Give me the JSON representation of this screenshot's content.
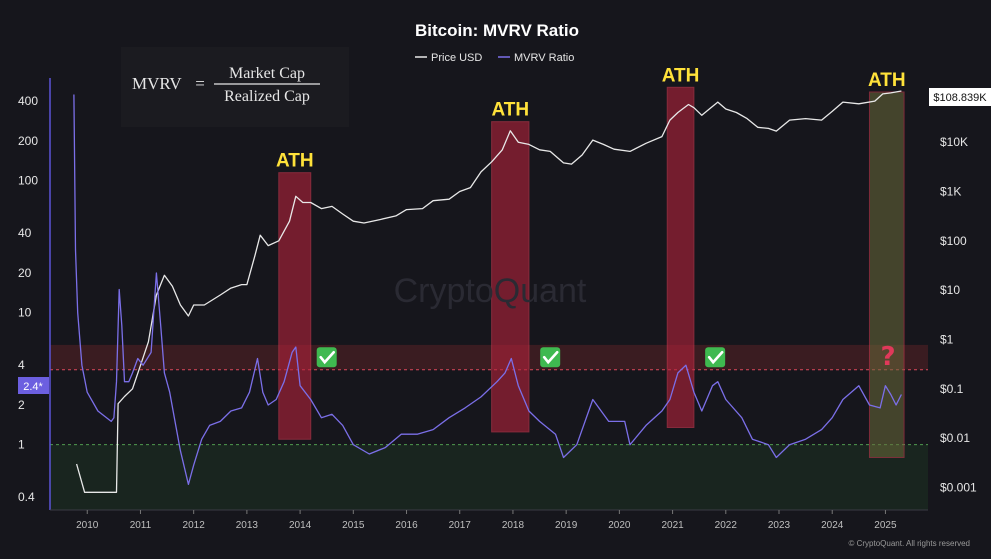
{
  "chart_data": {
    "type": "line",
    "title": "Bitcoin: MVRV Ratio",
    "legend": {
      "placement": "top-center",
      "items": [
        "Price USD",
        "MVRV Ratio"
      ]
    },
    "formula": {
      "lhs": "MVRV",
      "eq": "=",
      "numerator": "Market Cap",
      "denominator": "Realized Cap"
    },
    "watermark": "CryptoQuant",
    "copyright": "© CryptoQuant. All rights reserved",
    "colors": {
      "price": "#e8e8e8",
      "mvrv": "#7b6fe8",
      "ath_band": "#b3223a",
      "ath_label": "#ffe23a",
      "overvalued_zone": "#5a2226",
      "undervalued_zone": "#1d3322",
      "background": "#16161c"
    },
    "x_axis": {
      "range": [
        2009.3,
        2025.8
      ],
      "ticks": [
        2010,
        2011,
        2012,
        2013,
        2014,
        2015,
        2016,
        2017,
        2018,
        2019,
        2020,
        2021,
        2022,
        2023,
        2024,
        2025
      ]
    },
    "y_left": {
      "scale": "log",
      "range": [
        0.32,
        600
      ],
      "ticks": [
        0.4,
        1,
        2,
        4,
        10,
        20,
        40,
        100,
        200,
        400
      ],
      "tick_labels": [
        "0.4",
        "1",
        "2",
        "4",
        "10",
        "20",
        "40",
        "100",
        "200",
        "400"
      ],
      "current_value_label": "2.4*"
    },
    "y_right": {
      "scale": "log",
      "range": [
        0.00035,
        200000
      ],
      "ticks": [
        0.001,
        0.01,
        0.1,
        1,
        10,
        100,
        1000,
        10000
      ],
      "tick_labels": [
        "$0.001",
        "$0.01",
        "$0.1",
        "$1",
        "$10",
        "$100",
        "$1K",
        "$10K"
      ],
      "current_value_label": "$108.839K",
      "current_value": 108839
    },
    "zones": [
      {
        "name": "overvalued",
        "mvrv_from": 3.7,
        "mvrv_to": 5.7,
        "line_at": 3.7
      },
      {
        "name": "undervalued",
        "mvrv_from": 0.32,
        "mvrv_to": 1.0,
        "line_at": 1.0
      }
    ],
    "ath_markers": [
      {
        "label": "ATH",
        "x_from": 2013.6,
        "x_to": 2014.2,
        "mvrv_from": 1.1,
        "mvrv_to": 115,
        "check": true,
        "check_x": 2014.5
      },
      {
        "label": "ATH",
        "x_from": 2017.6,
        "x_to": 2018.3,
        "mvrv_from": 1.25,
        "mvrv_to": 280,
        "check": true,
        "check_x": 2018.7
      },
      {
        "label": "ATH",
        "x_from": 2020.9,
        "x_to": 2021.4,
        "mvrv_from": 1.35,
        "mvrv_to": 510,
        "check": true,
        "check_x": 2021.8
      },
      {
        "label": "ATH",
        "x_from": 2024.7,
        "x_to": 2025.35,
        "mvrv_from": 0.8,
        "mvrv_to": 470,
        "check": false,
        "question_x": 2025.05
      }
    ],
    "series": [
      {
        "name": "Price USD",
        "axis": "right",
        "x": [
          2009.8,
          2009.95,
          2010.3,
          2010.55,
          2010.58,
          2010.7,
          2010.85,
          2011.0,
          2011.15,
          2011.3,
          2011.45,
          2011.6,
          2011.75,
          2011.9,
          2012.0,
          2012.2,
          2012.5,
          2012.7,
          2012.9,
          2013.0,
          2013.15,
          2013.25,
          2013.4,
          2013.6,
          2013.8,
          2013.92,
          2014.05,
          2014.2,
          2014.4,
          2014.6,
          2014.8,
          2015.0,
          2015.2,
          2015.5,
          2015.8,
          2016.0,
          2016.3,
          2016.5,
          2016.8,
          2017.0,
          2017.2,
          2017.4,
          2017.6,
          2017.8,
          2017.95,
          2018.1,
          2018.3,
          2018.5,
          2018.7,
          2018.95,
          2019.1,
          2019.3,
          2019.5,
          2019.7,
          2019.9,
          2020.2,
          2020.5,
          2020.8,
          2020.95,
          2021.1,
          2021.3,
          2021.4,
          2021.55,
          2021.7,
          2021.85,
          2022.0,
          2022.2,
          2022.4,
          2022.6,
          2022.8,
          2022.95,
          2023.2,
          2023.5,
          2023.8,
          2024.0,
          2024.2,
          2024.5,
          2024.8,
          2024.95,
          2025.1,
          2025.3
        ],
        "y": [
          0.003,
          0.0008,
          0.0008,
          0.0008,
          0.05,
          0.07,
          0.1,
          0.3,
          0.9,
          8,
          20,
          12,
          5,
          3,
          5,
          5,
          8,
          11,
          13,
          13,
          50,
          130,
          80,
          100,
          250,
          800,
          600,
          600,
          450,
          500,
          350,
          250,
          230,
          270,
          320,
          430,
          450,
          650,
          700,
          1000,
          1200,
          2500,
          4000,
          7000,
          17000,
          10000,
          9000,
          7000,
          6500,
          3800,
          3600,
          5500,
          11000,
          9000,
          7200,
          6500,
          9500,
          13000,
          28000,
          40000,
          58000,
          50000,
          35000,
          48000,
          65000,
          47000,
          40000,
          30000,
          20000,
          19000,
          16800,
          28000,
          30000,
          28000,
          42000,
          65000,
          60000,
          68000,
          95000,
          100000,
          108839
        ]
      },
      {
        "name": "MVRV Ratio",
        "axis": "left",
        "x": [
          2009.75,
          2009.78,
          2009.82,
          2009.9,
          2010.0,
          2010.2,
          2010.45,
          2010.5,
          2010.55,
          2010.6,
          2010.65,
          2010.7,
          2010.78,
          2010.85,
          2010.95,
          2011.05,
          2011.2,
          2011.3,
          2011.38,
          2011.45,
          2011.55,
          2011.65,
          2011.75,
          2011.9,
          2012.0,
          2012.15,
          2012.3,
          2012.5,
          2012.7,
          2012.9,
          2013.05,
          2013.2,
          2013.3,
          2013.4,
          2013.55,
          2013.7,
          2013.85,
          2013.92,
          2014.0,
          2014.2,
          2014.4,
          2014.6,
          2014.8,
          2015.0,
          2015.3,
          2015.6,
          2015.9,
          2016.2,
          2016.5,
          2016.8,
          2017.1,
          2017.4,
          2017.7,
          2017.85,
          2017.97,
          2018.1,
          2018.3,
          2018.5,
          2018.8,
          2018.95,
          2019.2,
          2019.5,
          2019.8,
          2020.1,
          2020.2,
          2020.5,
          2020.8,
          2020.95,
          2021.1,
          2021.25,
          2021.4,
          2021.55,
          2021.75,
          2021.85,
          2022.0,
          2022.3,
          2022.5,
          2022.8,
          2022.95,
          2023.2,
          2023.5,
          2023.8,
          2024.0,
          2024.2,
          2024.5,
          2024.7,
          2024.9,
          2025.0,
          2025.1,
          2025.2,
          2025.3
        ],
        "y": [
          450,
          30,
          10,
          4,
          2.5,
          1.8,
          1.5,
          1.6,
          3,
          15,
          8,
          3,
          3,
          3.5,
          4.5,
          4,
          5,
          20,
          8,
          3.5,
          2.5,
          1.5,
          0.9,
          0.5,
          0.7,
          1.1,
          1.4,
          1.5,
          1.8,
          1.9,
          2.5,
          4.5,
          2.5,
          2,
          2.2,
          3,
          5,
          5.5,
          2.8,
          2.2,
          1.6,
          1.7,
          1.4,
          1.0,
          0.85,
          0.95,
          1.2,
          1.2,
          1.3,
          1.6,
          1.9,
          2.3,
          3.0,
          3.5,
          4.5,
          2.8,
          1.8,
          1.5,
          1.2,
          0.8,
          1.0,
          2.2,
          1.5,
          1.5,
          1.0,
          1.4,
          1.8,
          2.2,
          3.5,
          4.0,
          2.5,
          1.8,
          2.8,
          3.0,
          2.2,
          1.6,
          1.1,
          1.0,
          0.8,
          1.0,
          1.1,
          1.3,
          1.6,
          2.2,
          2.8,
          2.0,
          1.9,
          2.8,
          2.4,
          2.0,
          2.4
        ]
      }
    ]
  }
}
